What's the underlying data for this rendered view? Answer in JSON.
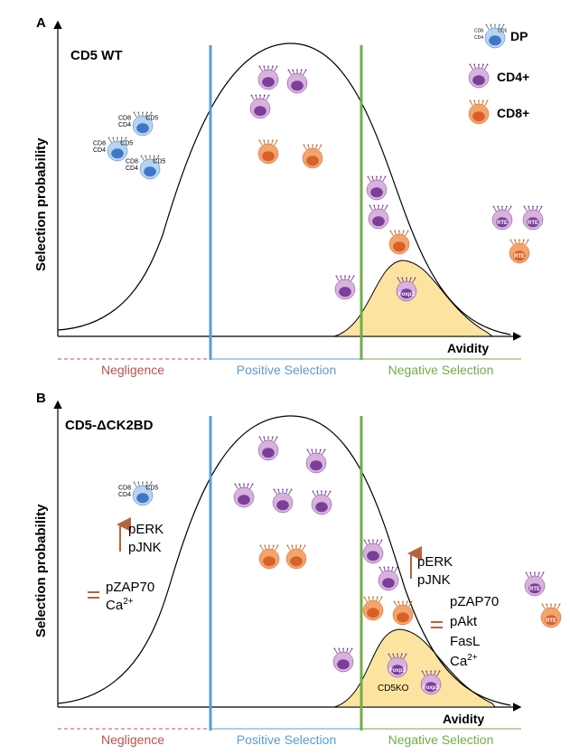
{
  "panel_a": {
    "letter": "A",
    "title": "CD5 WT",
    "ylabel": "Selection probability",
    "xlabel": "Avidity",
    "zones": {
      "negligence": "Negligence",
      "positive": "Positive Selection",
      "negative": "Negative Selection"
    },
    "legend": {
      "dp": "DP",
      "cd4": "CD4+",
      "cd8": "CD8+"
    },
    "cell_labels": {
      "cd8": "CD8",
      "cd5": "CD5",
      "cd4": "CD4",
      "foxp3": "Foxp3",
      "rte": "RTE"
    }
  },
  "panel_b": {
    "letter": "B",
    "title": "CD5-ΔCK2BD",
    "ylabel": "Selection probability",
    "xlabel": "Avidity",
    "zones": {
      "negligence": "Negligence",
      "positive": "Positive Selection",
      "negative": "Negative Selection"
    },
    "left_up": [
      "pERK",
      "pJNK"
    ],
    "left_eq": [
      "pZAP70",
      "Ca2+"
    ],
    "right_up": [
      "pERK",
      "pJNK"
    ],
    "right_eq": [
      "pZAP70",
      "pAkt",
      "FasL",
      "Ca2+"
    ],
    "cd5ko": "CD5KO",
    "cell_labels": {
      "cd8": "CD8",
      "cd5": "CD5",
      "cd4": "CD4",
      "foxp3": "Foxp3",
      "rte": "RTE"
    }
  },
  "colors": {
    "negligence": "#c0504d",
    "positive": "#5b9bd5",
    "negative": "#70ad47",
    "cd4_light": "#d7b3dc",
    "cd4_dark": "#7b3f99",
    "cd8_light": "#f2a46b",
    "cd8_dark": "#d8602a",
    "dp_light": "#b7d4ef",
    "dp_dark": "#3f77c8",
    "tolerance_fill": "#fce4a0",
    "arrow": "#b5653a"
  }
}
